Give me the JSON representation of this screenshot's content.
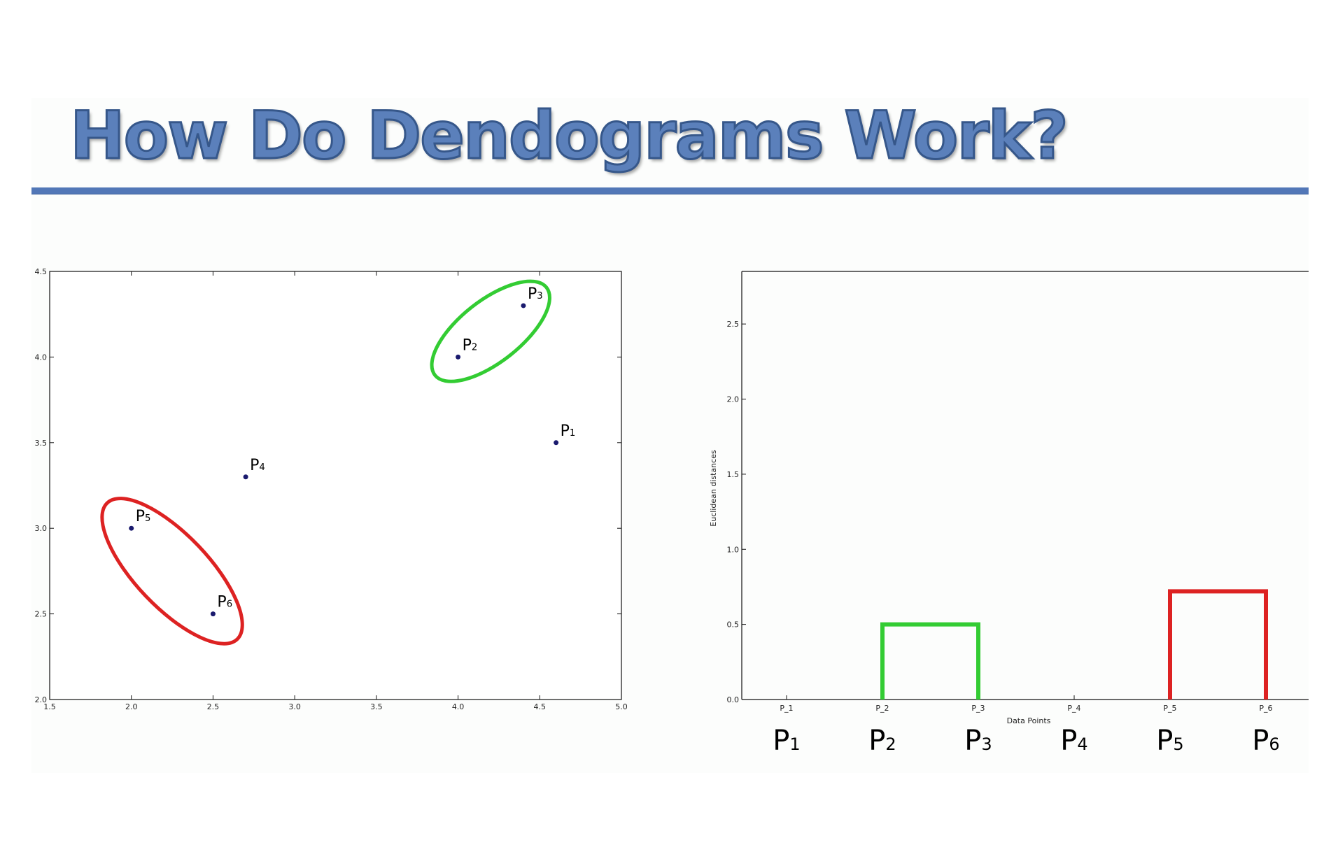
{
  "slide": {
    "title": "How Do Dendograms Work?"
  },
  "colors": {
    "title_fill": "#5b80bb",
    "rule": "#5277b7",
    "point": "#1a1a6e",
    "cluster_green": "#33cc33",
    "cluster_red": "#dd2222"
  },
  "chart_data": [
    {
      "type": "scatter",
      "xlim": [
        1.5,
        5.0
      ],
      "ylim": [
        2.0,
        4.5
      ],
      "x_ticks": [
        "1.5",
        "2.0",
        "2.5",
        "3.0",
        "3.5",
        "4.0",
        "4.5",
        "5.0"
      ],
      "y_ticks": [
        "2.0",
        "2.5",
        "3.0",
        "3.5",
        "4.0",
        "4.5"
      ],
      "grid": false,
      "points": [
        {
          "label": "P",
          "sub": "1",
          "x": 4.6,
          "y": 3.5
        },
        {
          "label": "P",
          "sub": "2",
          "x": 4.0,
          "y": 4.0
        },
        {
          "label": "P",
          "sub": "3",
          "x": 4.4,
          "y": 4.3
        },
        {
          "label": "P",
          "sub": "4",
          "x": 2.7,
          "y": 3.3
        },
        {
          "label": "P",
          "sub": "5",
          "x": 2.0,
          "y": 3.0
        },
        {
          "label": "P",
          "sub": "6",
          "x": 2.5,
          "y": 2.5
        }
      ],
      "cluster_ellipses": [
        {
          "members": [
            "P2",
            "P3"
          ],
          "color": "green"
        },
        {
          "members": [
            "P5",
            "P6"
          ],
          "color": "red"
        }
      ]
    },
    {
      "type": "dendrogram",
      "xlabel": "Data Points",
      "ylabel": "Euclidean distances",
      "ylim": [
        0.0,
        2.85
      ],
      "y_ticks": [
        "0.0",
        "0.5",
        "1.0",
        "1.5",
        "2.0",
        "2.5"
      ],
      "grid": false,
      "categories": [
        "P_1",
        "P_2",
        "P_3",
        "P_4",
        "P_5",
        "P_6"
      ],
      "big_labels": [
        {
          "label": "P",
          "sub": "1"
        },
        {
          "label": "P",
          "sub": "2"
        },
        {
          "label": "P",
          "sub": "3"
        },
        {
          "label": "P",
          "sub": "4"
        },
        {
          "label": "P",
          "sub": "5"
        },
        {
          "label": "P",
          "sub": "6"
        }
      ],
      "merges": [
        {
          "left": 1,
          "right": 2,
          "height": 0.5,
          "color": "green"
        },
        {
          "left": 4,
          "right": 5,
          "height": 0.72,
          "color": "red"
        }
      ]
    }
  ]
}
